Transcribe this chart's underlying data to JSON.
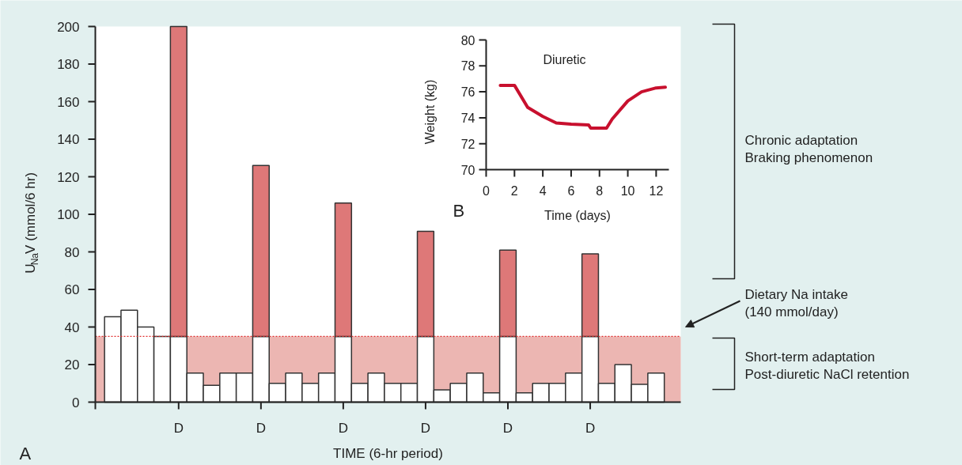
{
  "chart_data": [
    {
      "type": "bar",
      "stacked": true,
      "xlabel": "TIME (6-hr period)",
      "ylabel": "U$_{Na}$V (mmol/6 hr)",
      "categories": [
        null,
        null,
        null,
        null,
        "D",
        null,
        null,
        null,
        null,
        "D",
        null,
        null,
        null,
        null,
        "D",
        null,
        null,
        null,
        null,
        "D",
        null,
        null,
        null,
        null,
        "D",
        null,
        null,
        null,
        null,
        "D",
        null,
        null,
        null,
        null,
        null
      ],
      "series": [
        {
          "color": "#ffffff",
          "values": [
            45.5,
            49,
            40,
            35,
            35,
            15.5,
            9,
            15.5,
            15.5,
            35,
            10,
            15.5,
            10,
            15.5,
            35,
            10,
            15.5,
            10,
            10,
            35,
            6.5,
            10,
            15.5,
            5,
            35,
            5,
            10,
            10,
            15.5,
            35,
            10,
            20,
            9.5,
            15.5,
            null
          ]
        },
        {
          "color": "#de7878",
          "values": [
            null,
            null,
            null,
            null,
            165,
            null,
            null,
            null,
            null,
            91,
            null,
            null,
            null,
            null,
            71,
            null,
            null,
            null,
            null,
            56,
            null,
            null,
            null,
            null,
            46,
            null,
            null,
            null,
            null,
            44,
            null,
            null,
            null,
            null,
            null
          ]
        }
      ],
      "ylim": [
        0,
        200
      ],
      "yticks": [
        0,
        20,
        40,
        60,
        80,
        100,
        120,
        140,
        160,
        180,
        200
      ],
      "bands": [
        {
          "axis": "y",
          "from": 0,
          "to": 35,
          "color": "#ecb6b2"
        }
      ],
      "ref_lines": [
        {
          "axis": "y",
          "value": 35,
          "color": "#e03030",
          "line_style": "dotted"
        }
      ],
      "annotations": [
        "A",
        "Chronic adaptation\nBraking phenomenon",
        "Short-term adaptation\nPost-diuretic NaCl retention",
        "Dietary Na intake\n(140 mmol/day)"
      ]
    },
    {
      "type": "line",
      "xlabel": "Time (days)",
      "ylabel": "Weight (kg)",
      "color": "#c8102e",
      "x": [
        1.0,
        2.0,
        2.93,
        4.0,
        4.95,
        6.0,
        7.23,
        7.38,
        8.5,
        8.9,
        10.0,
        10.97,
        12.0,
        12.65
      ],
      "values": [
        76.5,
        76.5,
        74.8,
        74.1,
        73.6,
        73.5,
        73.45,
        73.2,
        73.2,
        73.9,
        75.3,
        76.0,
        76.3,
        76.35
      ],
      "xlim": [
        0,
        12.9
      ],
      "ylim": [
        70,
        80
      ],
      "xticks": [
        0,
        2,
        4,
        6,
        8,
        10,
        12
      ],
      "yticks": [
        70,
        72,
        74,
        76,
        78,
        80
      ],
      "annotations": [
        "Diuretic",
        "B"
      ]
    }
  ]
}
